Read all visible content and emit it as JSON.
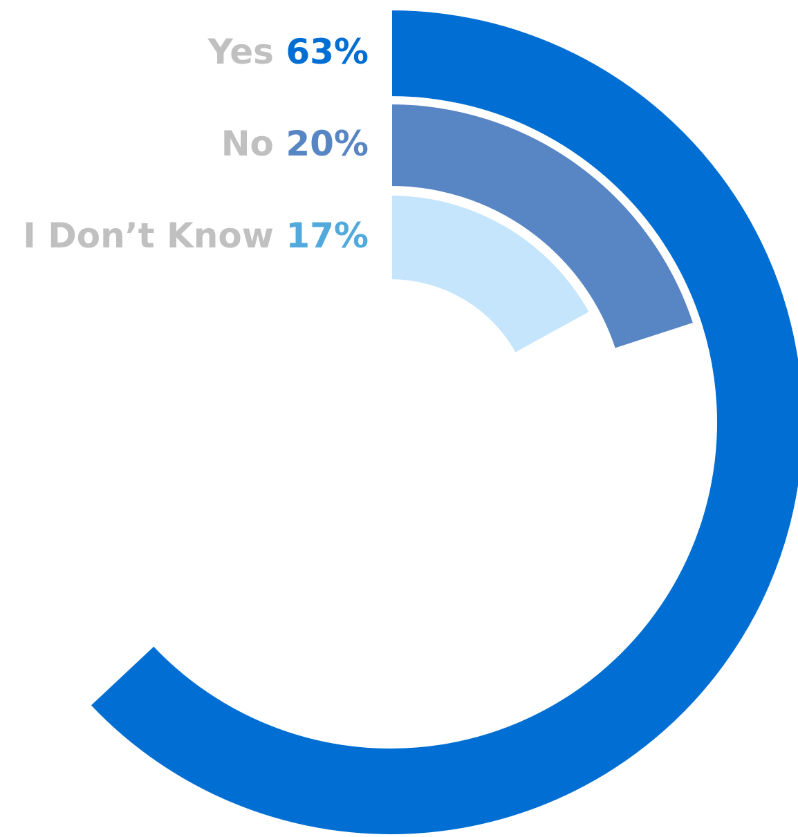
{
  "chart_data": {
    "type": "radial-bar",
    "unit": "%",
    "max": 100,
    "series": [
      {
        "label": "Yes",
        "value": 63,
        "display": "63%",
        "color": "#006ed3"
      },
      {
        "label": "No",
        "value": 20,
        "display": "20%",
        "color": "#5885c4"
      },
      {
        "label": "I Don’t Know",
        "value": 17,
        "display": "17%",
        "color": "#c4e5fb"
      }
    ],
    "label_color": "#c0c0c0",
    "value_label_colors": [
      "#006ed3",
      "#5885c4",
      "#52a9dc"
    ]
  }
}
